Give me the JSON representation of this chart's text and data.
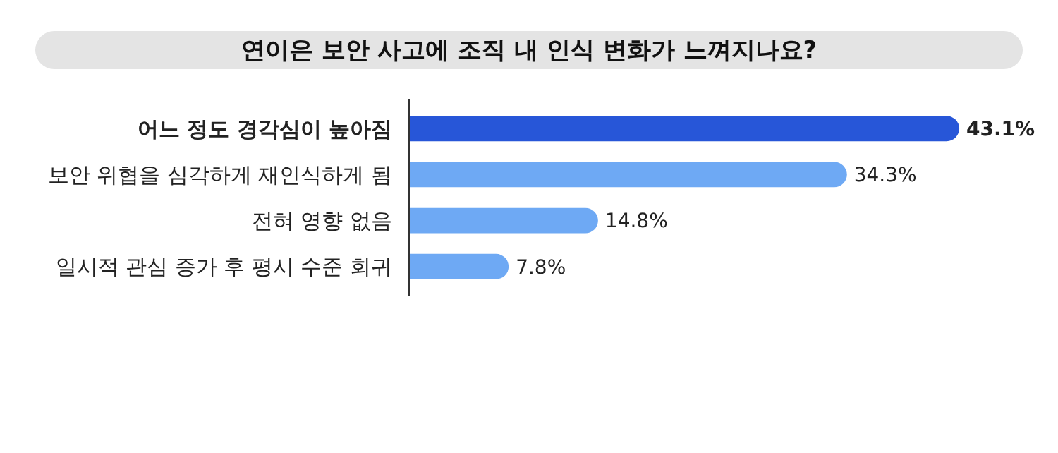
{
  "chart_data": {
    "type": "bar",
    "orientation": "horizontal",
    "title": "연이은 보안 사고에 조직 내 인식 변화가 느껴지나요?",
    "categories": [
      "어느 정도 경각심이 높아짐",
      "보안 위협을 심각하게 재인식하게 됨",
      "전혀 영향 없음",
      "일시적 관심 증가 후 평시 수준 회귀"
    ],
    "values": [
      43.1,
      34.3,
      14.8,
      7.8
    ],
    "value_labels": [
      "43.1%",
      "34.3%",
      "14.8%",
      "7.8%"
    ],
    "colors": [
      "#2756d8",
      "#6ea9f4",
      "#6ea9f4",
      "#6ea9f4"
    ]
  }
}
